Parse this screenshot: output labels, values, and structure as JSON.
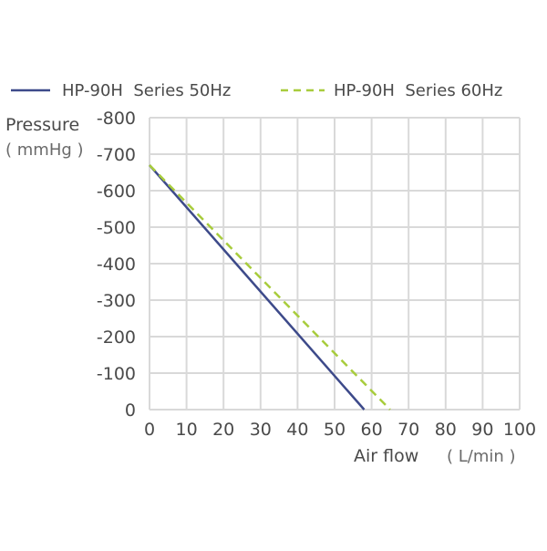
{
  "chart_data": {
    "type": "line",
    "ylabel": "Pressure",
    "ylabel_unit": "( mmHg )",
    "xlabel": "Air flow",
    "xlabel_unit": "( L/min )",
    "xlim": [
      0,
      100
    ],
    "ylim": [
      0,
      -800
    ],
    "x_ticks": [
      0,
      10,
      20,
      30,
      40,
      50,
      60,
      70,
      80,
      90,
      100
    ],
    "x_tick_labels": [
      "0",
      "10",
      "20",
      "30",
      "40",
      "50",
      "60",
      "70",
      "80",
      "90",
      "100"
    ],
    "y_ticks": [
      0,
      -100,
      -200,
      -300,
      -400,
      -500,
      -600,
      -700,
      -800
    ],
    "y_tick_labels": [
      "0",
      "-100",
      "-200",
      "-300",
      "-400",
      "-500",
      "-600",
      "-700",
      "-800"
    ],
    "grid": true,
    "legend_position": "top",
    "series": [
      {
        "name": "HP-90H  Series 50Hz",
        "color": "#3d4a8a",
        "style": "solid",
        "x": [
          0,
          58
        ],
        "y": [
          -670,
          0
        ]
      },
      {
        "name": "HP-90H  Series 60Hz",
        "color": "#a8cc3c",
        "style": "dashed",
        "x": [
          0,
          65
        ],
        "y": [
          -670,
          0
        ]
      }
    ]
  }
}
